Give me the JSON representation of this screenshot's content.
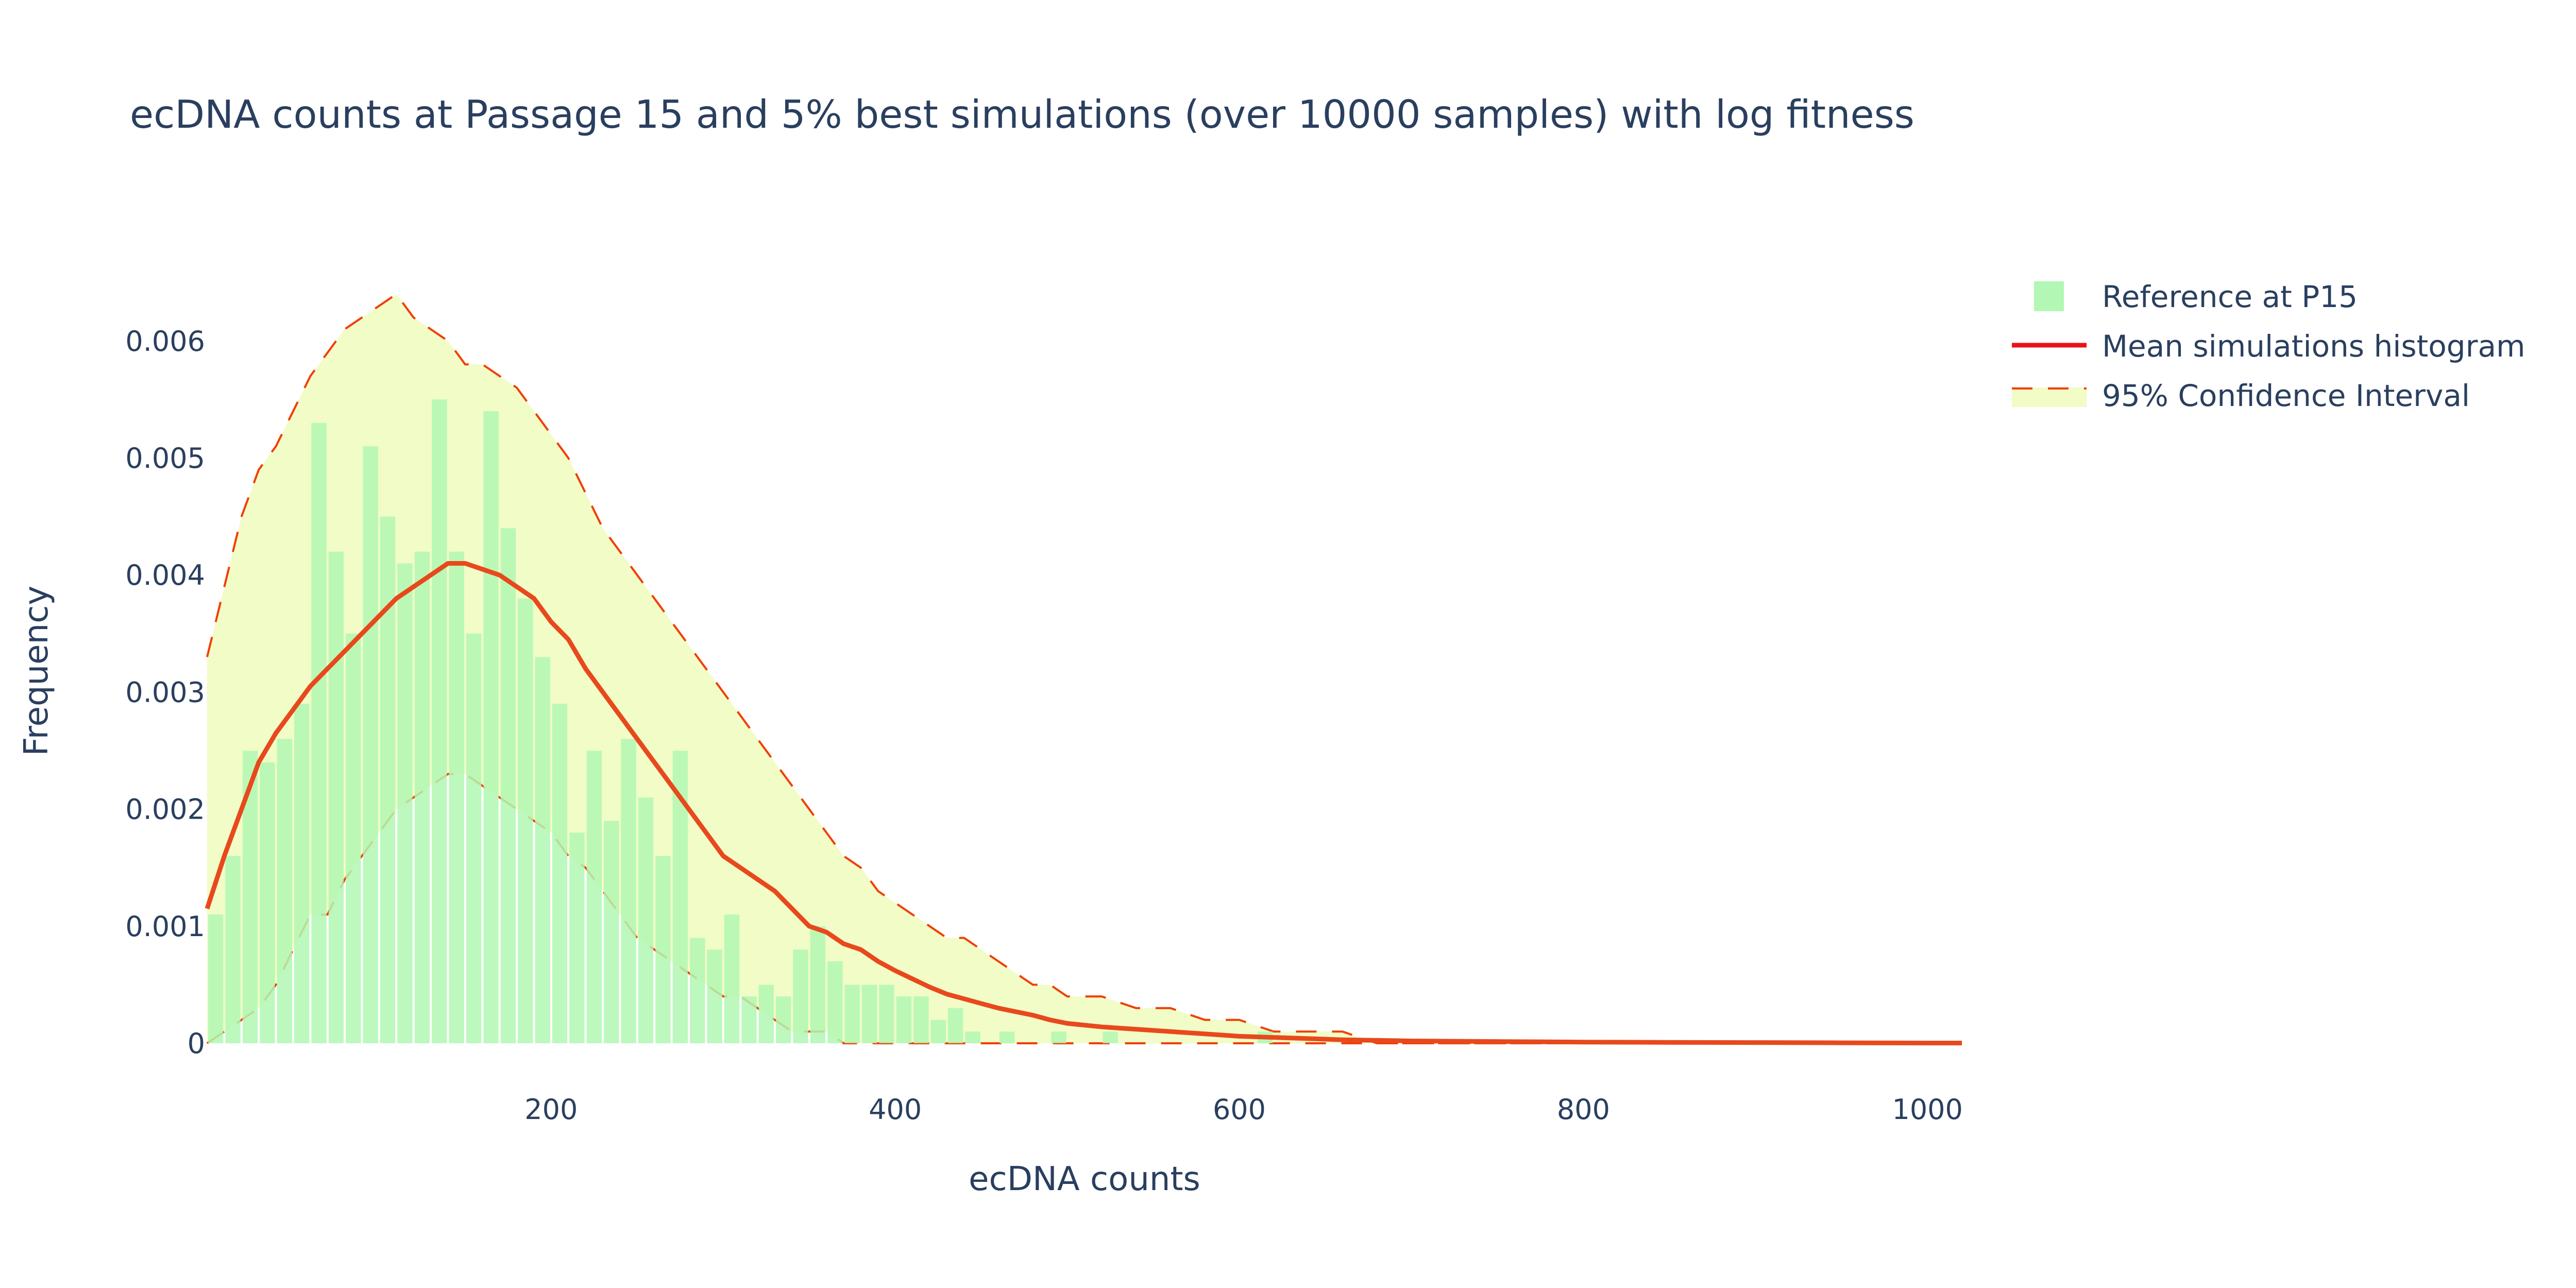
{
  "chart_data": {
    "type": "bar",
    "title": "ecDNA counts at Passage 15 and 5% best simulations (over 10000 samples) with log fitness",
    "xlabel": "ecDNA counts",
    "ylabel": "Frequency",
    "xlim": [
      0,
      1020
    ],
    "ylim": [
      0,
      0.0068
    ],
    "x_ticks": [
      200,
      400,
      600,
      800,
      1000
    ],
    "x_tick_labels": [
      "200",
      "400",
      "600",
      "800",
      "1000"
    ],
    "y_ticks": [
      0,
      0.001,
      0.002,
      0.003,
      0.004,
      0.005,
      0.006
    ],
    "y_tick_labels": [
      "0",
      "0.001",
      "0.002",
      "0.003",
      "0.004",
      "0.005",
      "0.006"
    ],
    "grid": false,
    "legend_position": "top-right",
    "legend": [
      {
        "label": "Reference at P15",
        "kind": "bar",
        "color": "#b2f7b3"
      },
      {
        "label": "Mean simulations histogram",
        "kind": "line",
        "color": "#e8141c"
      },
      {
        "label": "95% Confidence Interval",
        "kind": "dashed-band",
        "color": "#f13e00",
        "fill": "#f1fcc7"
      }
    ],
    "series": [
      {
        "name": "Reference at P15",
        "kind": "bar",
        "color": "#b2f7b3",
        "bin_width": 10,
        "x": [
          5,
          15,
          25,
          35,
          45,
          55,
          65,
          75,
          85,
          95,
          105,
          115,
          125,
          135,
          145,
          155,
          165,
          175,
          185,
          195,
          205,
          215,
          225,
          235,
          245,
          255,
          265,
          275,
          285,
          295,
          305,
          315,
          325,
          335,
          345,
          355,
          365,
          375,
          385,
          395,
          405,
          415,
          425,
          435,
          445,
          455,
          465,
          475,
          485,
          495,
          505,
          515,
          525,
          535,
          545,
          555,
          565,
          575,
          585,
          595,
          605,
          615,
          625,
          635,
          645,
          655,
          665
        ],
        "y": [
          0.0011,
          0.0016,
          0.0025,
          0.0024,
          0.0026,
          0.0029,
          0.0053,
          0.0042,
          0.0035,
          0.0051,
          0.0045,
          0.0041,
          0.0042,
          0.0055,
          0.0042,
          0.0035,
          0.0054,
          0.0044,
          0.0038,
          0.0033,
          0.0029,
          0.0018,
          0.0025,
          0.0019,
          0.0026,
          0.0021,
          0.0016,
          0.0025,
          0.0009,
          0.0008,
          0.0011,
          0.0004,
          0.0005,
          0.0004,
          0.0008,
          0.001,
          0.0007,
          0.0005,
          0.0005,
          0.0005,
          0.0004,
          0.0004,
          0.0002,
          0.0003,
          0.0001,
          0.0,
          0.0001,
          0.0,
          0.0,
          0.0001,
          0.0,
          0.0,
          0.0001,
          0.0,
          0.0,
          0.0,
          0.0,
          0.0,
          0.0,
          0.0,
          0.0,
          0.0001,
          0.0,
          0.0,
          0.0,
          0.0,
          0.0
        ]
      },
      {
        "name": "Mean simulations histogram",
        "kind": "line",
        "color": "#e8141c",
        "x": [
          0,
          10,
          20,
          30,
          40,
          50,
          60,
          70,
          80,
          90,
          100,
          110,
          120,
          130,
          140,
          150,
          160,
          170,
          180,
          190,
          200,
          210,
          220,
          230,
          240,
          250,
          260,
          270,
          280,
          290,
          300,
          310,
          320,
          330,
          340,
          350,
          360,
          370,
          380,
          390,
          400,
          410,
          420,
          430,
          440,
          450,
          460,
          470,
          480,
          490,
          500,
          520,
          540,
          560,
          580,
          600,
          620,
          640,
          660,
          680,
          700,
          750,
          800,
          850,
          900,
          950,
          1000,
          1020
        ],
        "y": [
          0.00115,
          0.0016,
          0.002,
          0.0024,
          0.00265,
          0.00285,
          0.00305,
          0.0032,
          0.00335,
          0.0035,
          0.00365,
          0.0038,
          0.0039,
          0.004,
          0.0041,
          0.0041,
          0.00405,
          0.004,
          0.0039,
          0.0038,
          0.0036,
          0.00345,
          0.0032,
          0.003,
          0.0028,
          0.0026,
          0.0024,
          0.0022,
          0.002,
          0.0018,
          0.0016,
          0.0015,
          0.0014,
          0.0013,
          0.00115,
          0.001,
          0.00095,
          0.00085,
          0.0008,
          0.0007,
          0.00062,
          0.00055,
          0.00048,
          0.00042,
          0.00038,
          0.00034,
          0.0003,
          0.00027,
          0.00024,
          0.0002,
          0.00017,
          0.00014,
          0.00012,
          0.0001,
          8e-05,
          6e-05,
          5e-05,
          4e-05,
          3e-05,
          2.5e-05,
          2e-05,
          1.5e-05,
          1e-05,
          8e-06,
          6e-06,
          4e-06,
          2e-06,
          2e-06
        ]
      },
      {
        "name": "95% Confidence Interval",
        "kind": "band",
        "color": "#f13e00",
        "fill": "#f1fcc7",
        "x": [
          0,
          10,
          20,
          30,
          40,
          50,
          60,
          70,
          80,
          90,
          100,
          110,
          120,
          130,
          140,
          150,
          160,
          170,
          180,
          190,
          200,
          210,
          220,
          230,
          240,
          250,
          260,
          270,
          280,
          290,
          300,
          310,
          320,
          330,
          340,
          350,
          360,
          370,
          380,
          390,
          400,
          410,
          420,
          430,
          440,
          450,
          460,
          470,
          480,
          490,
          500,
          520,
          540,
          560,
          580,
          600,
          620,
          640,
          660,
          680,
          700,
          750,
          800,
          850,
          900,
          950,
          1000,
          1020
        ],
        "upper": [
          0.0033,
          0.0039,
          0.0045,
          0.0049,
          0.0051,
          0.0054,
          0.0057,
          0.0059,
          0.0061,
          0.0062,
          0.0063,
          0.0064,
          0.0062,
          0.0061,
          0.006,
          0.0058,
          0.0058,
          0.0057,
          0.0056,
          0.0054,
          0.0052,
          0.005,
          0.0047,
          0.0044,
          0.0042,
          0.004,
          0.0038,
          0.0036,
          0.0034,
          0.0032,
          0.003,
          0.0028,
          0.0026,
          0.0024,
          0.0022,
          0.002,
          0.0018,
          0.0016,
          0.0015,
          0.0013,
          0.0012,
          0.0011,
          0.001,
          0.0009,
          0.0009,
          0.0008,
          0.0007,
          0.0006,
          0.0005,
          0.0005,
          0.0004,
          0.0004,
          0.0003,
          0.0003,
          0.0002,
          0.0002,
          0.0001,
          0.0001,
          0.0001,
          0.0,
          0.0,
          0.0,
          0.0,
          0.0,
          0.0,
          0.0,
          0.0,
          0.0
        ],
        "lower": [
          0.0,
          0.0001,
          0.0002,
          0.0003,
          0.0005,
          0.0008,
          0.0011,
          0.0011,
          0.0014,
          0.0016,
          0.0018,
          0.002,
          0.0021,
          0.0022,
          0.0023,
          0.0023,
          0.0022,
          0.0021,
          0.002,
          0.0019,
          0.0018,
          0.0016,
          0.0015,
          0.0013,
          0.0011,
          0.0009,
          0.0008,
          0.0007,
          0.0006,
          0.0005,
          0.0004,
          0.0004,
          0.0003,
          0.0002,
          0.0001,
          0.0001,
          0.0001,
          0.0,
          0.0,
          0.0,
          0.0,
          0.0,
          0.0,
          0.0,
          0.0,
          0.0,
          0.0,
          0.0,
          0.0,
          0.0,
          0.0,
          0.0,
          0.0,
          0.0,
          0.0,
          0.0,
          0.0,
          0.0,
          0.0,
          0.0,
          0.0,
          0.0,
          0.0,
          0.0,
          0.0,
          0.0,
          0.0,
          0.0
        ]
      }
    ]
  }
}
